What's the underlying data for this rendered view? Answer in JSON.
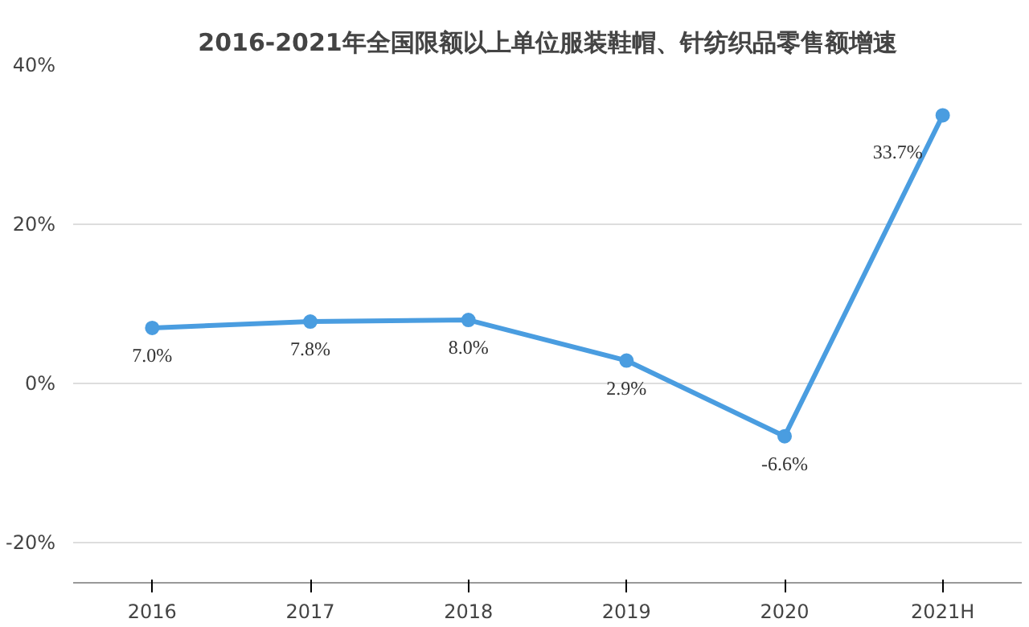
{
  "chart_data": {
    "type": "line",
    "title": "2016-2021年全国限额以上单位服装鞋帽、针纺织品零售额增速",
    "categories": [
      "2016",
      "2017",
      "2018",
      "2019",
      "2020",
      "2021H"
    ],
    "series": [
      {
        "color": "#4a9de0",
        "values": [
          7.0,
          7.8,
          8.0,
          2.9,
          -6.6,
          33.7
        ],
        "value_labels": [
          "7.0%",
          "7.8%",
          "8.0%",
          "2.9%",
          "-6.6%",
          "33.7%"
        ]
      }
    ],
    "ylim": [
      -25,
      40
    ],
    "yticks": [
      {
        "value": -20,
        "label": "-20%"
      },
      {
        "value": 0,
        "label": "0%"
      },
      {
        "value": 20,
        "label": "20%"
      },
      {
        "value": 40,
        "label": "40%"
      }
    ],
    "grid": "y",
    "marker": "circle",
    "line_style": "solid"
  }
}
